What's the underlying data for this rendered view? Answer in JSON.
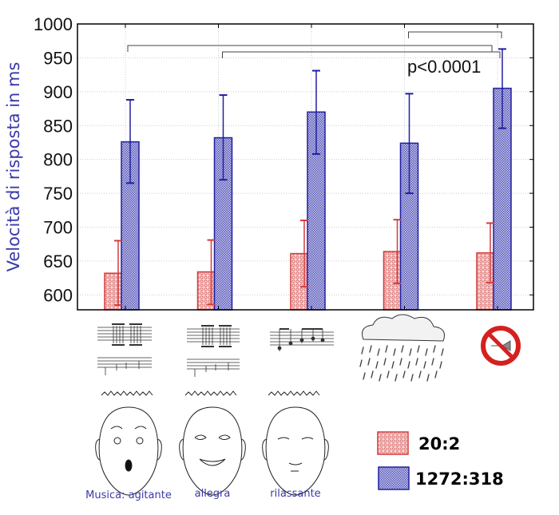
{
  "chart_data": {
    "type": "bar",
    "title": "",
    "xlabel": "",
    "ylabel": "Velocità di risposta in ms",
    "ylim": [
      578,
      1000
    ],
    "yticks": [
      600,
      650,
      700,
      750,
      800,
      850,
      900,
      950,
      1000
    ],
    "grid": true,
    "categories": [
      "Musica agitante",
      "Musica allegra",
      "Musica rilassante",
      "Pioggia",
      "Nessun suono"
    ],
    "series": [
      {
        "name": "20:2",
        "color": "#d43c3c",
        "fill": "#f3c8c8",
        "values": [
          632,
          634,
          661,
          664,
          662
        ],
        "err_high": [
          680,
          681,
          710,
          711,
          706
        ],
        "err_low": [
          585,
          586,
          612,
          617,
          618
        ]
      },
      {
        "name": "1272:318",
        "color": "#1f1fa0",
        "fill": "#a9a9dc",
        "values": [
          826,
          832,
          870,
          824,
          905
        ],
        "err_high": [
          888,
          895,
          931,
          897,
          963
        ],
        "err_low": [
          765,
          770,
          808,
          750,
          846
        ]
      }
    ],
    "significance": {
      "label": "p<0.0001",
      "comparisons": [
        [
          0,
          4
        ],
        [
          1,
          4
        ],
        [
          3,
          4
        ]
      ]
    },
    "legend_position": "bottom-right"
  },
  "captions": [
    "Musica: agitante",
    "allegra",
    "rilassante"
  ],
  "legend": [
    "20:2",
    "1272:318"
  ]
}
